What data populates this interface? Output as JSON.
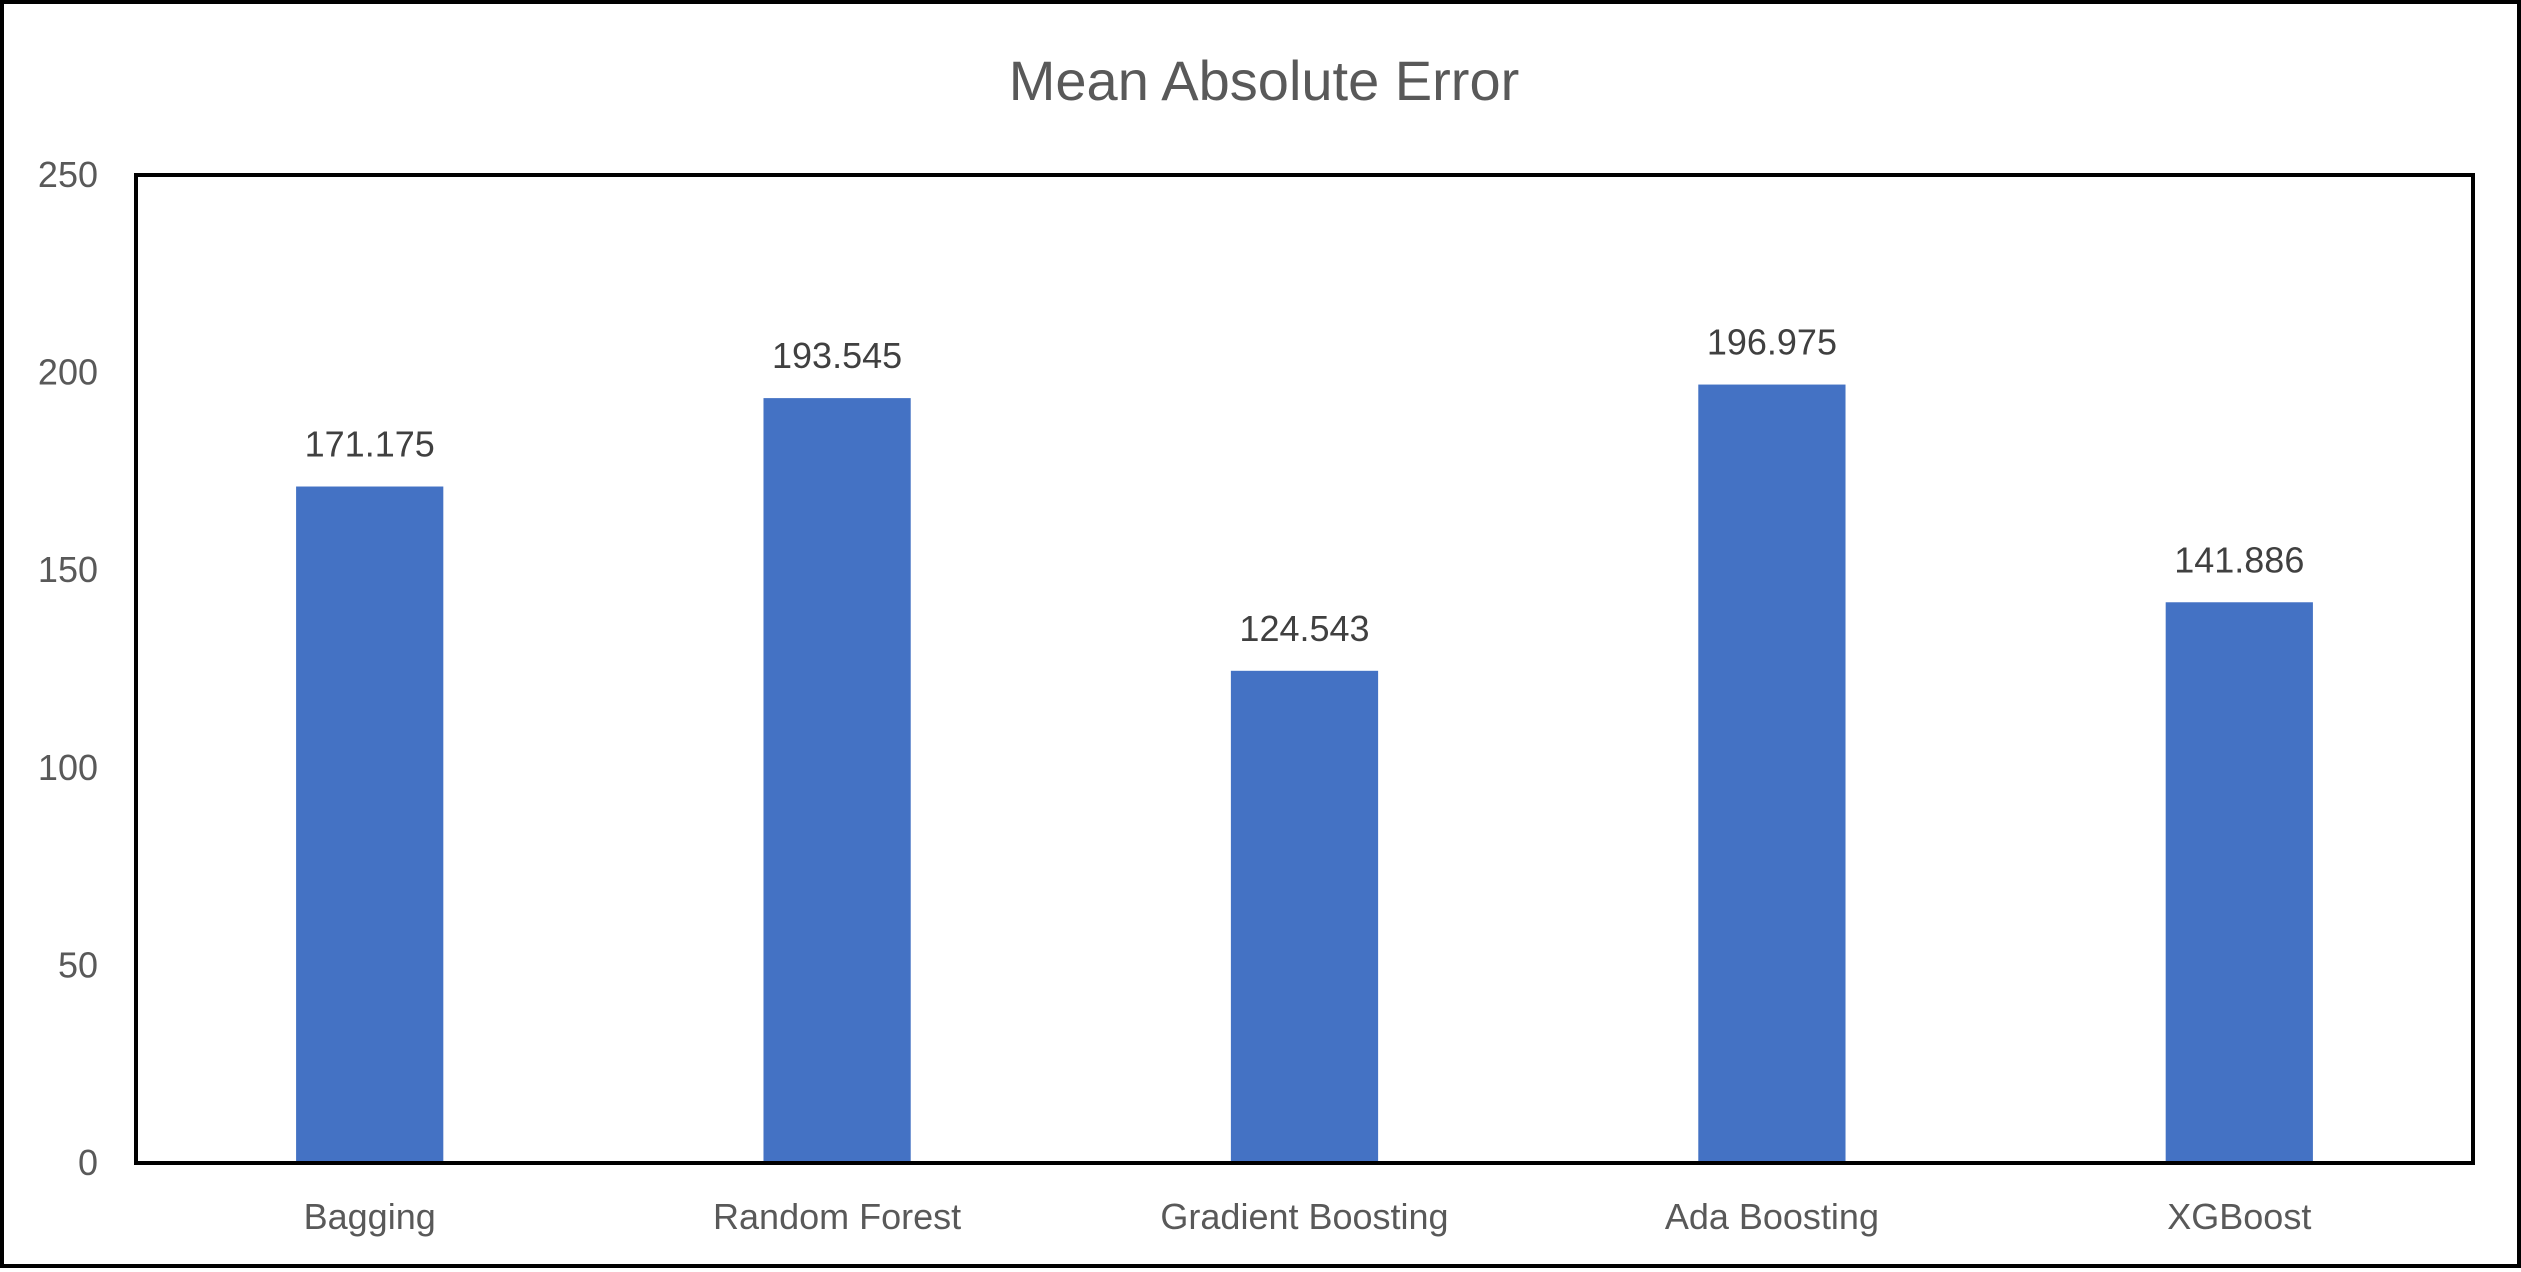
{
  "chart_data": {
    "type": "bar",
    "title": "Mean Absolute Error",
    "xlabel": "",
    "ylabel": "",
    "categories": [
      "Bagging",
      "Random Forest",
      "Gradient Boosting",
      "Ada Boosting",
      "XGBoost"
    ],
    "values": [
      171.175,
      193.545,
      124.543,
      196.975,
      141.886
    ],
    "value_labels": [
      "171.175",
      "193.545",
      "124.543",
      "196.975",
      "141.886"
    ],
    "ylim": [
      0,
      250
    ],
    "yticks": [
      0,
      50,
      100,
      150,
      200,
      250
    ],
    "ytick_labels": [
      "0",
      "50",
      "100",
      "150",
      "200",
      "250"
    ],
    "grid": false,
    "legend": "none",
    "bar_color": "#4472C4",
    "plot_border_color": "#000000"
  }
}
